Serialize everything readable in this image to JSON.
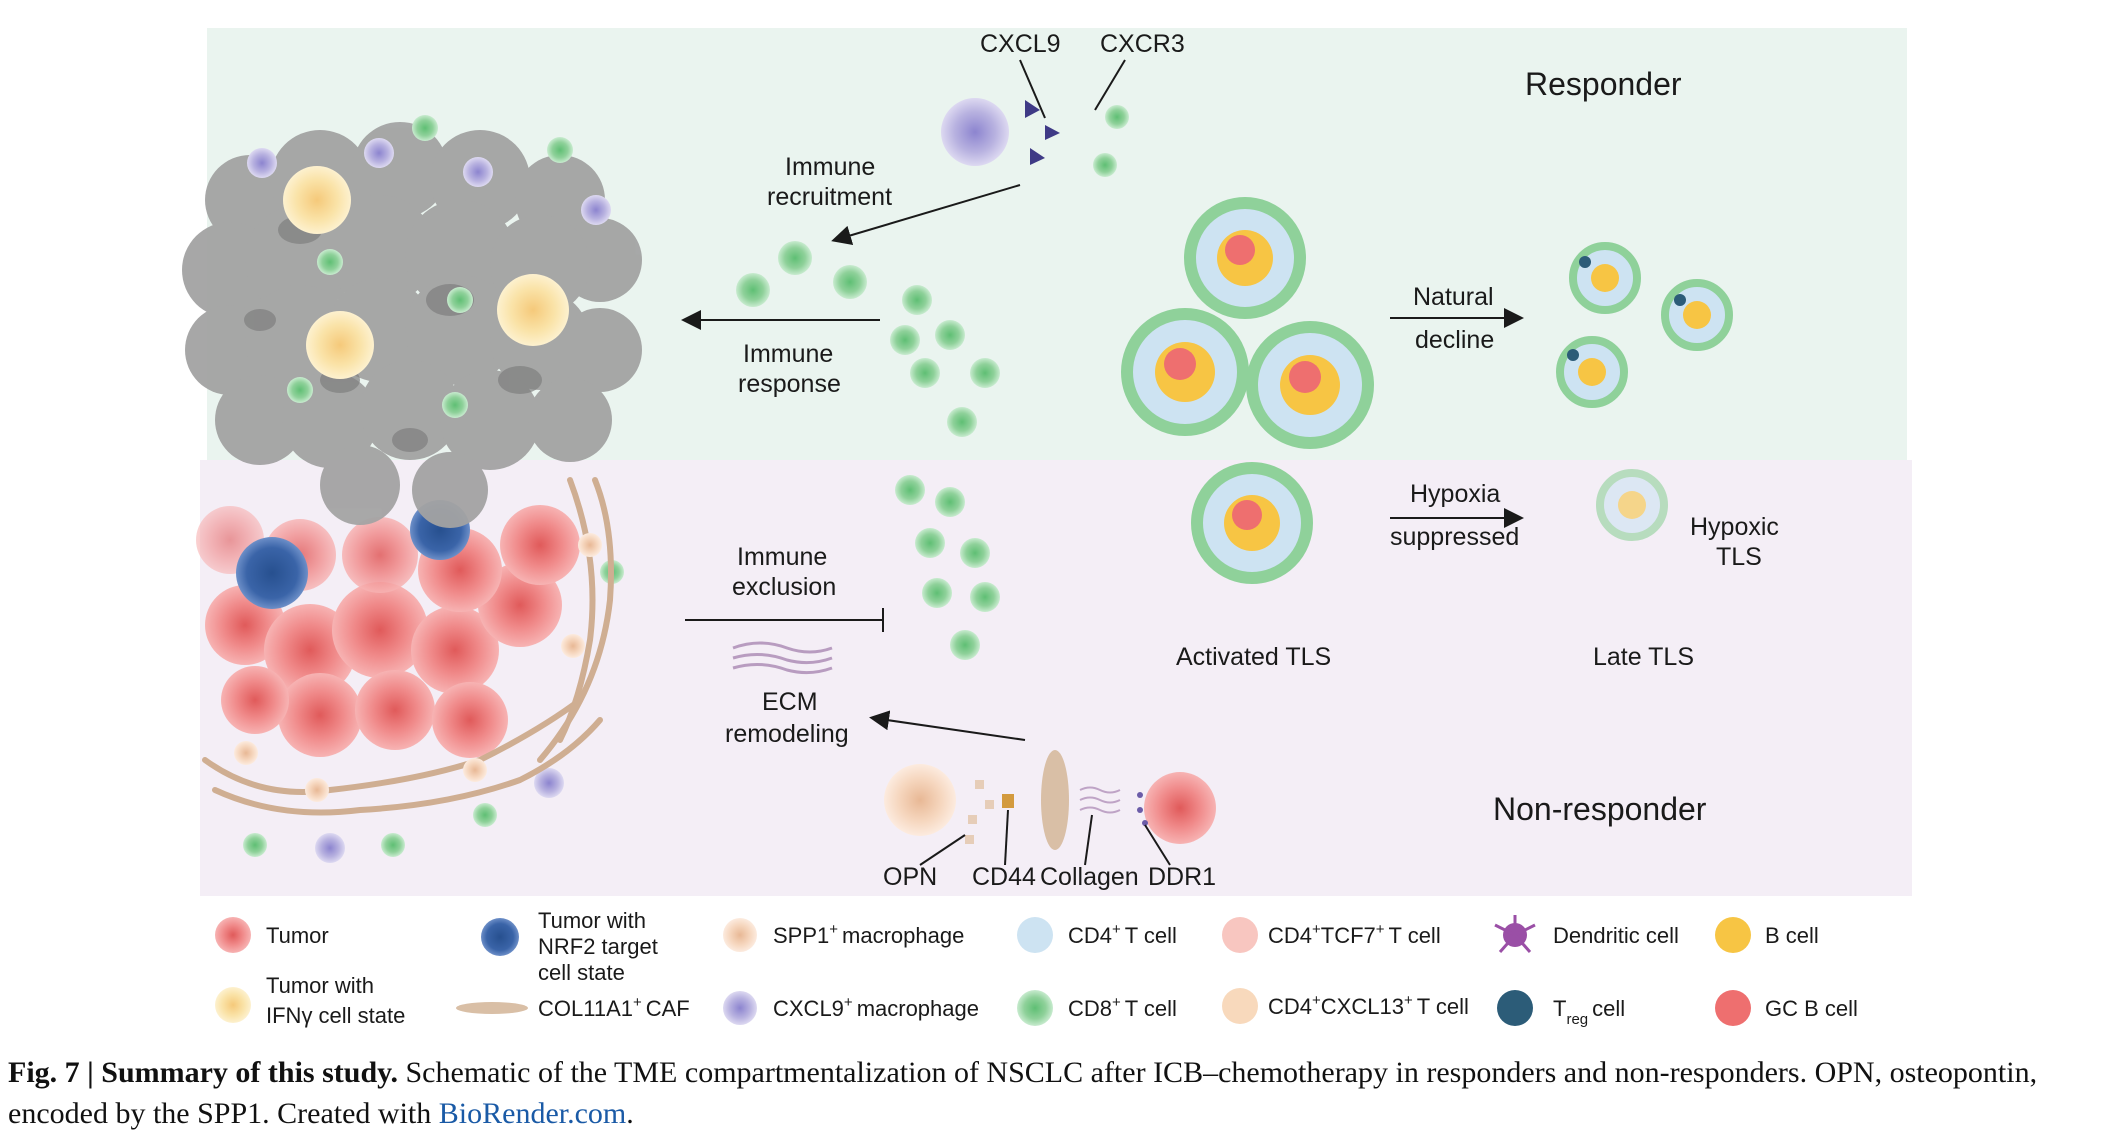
{
  "sections": {
    "responder": "Responder",
    "non_responder": "Non-responder"
  },
  "labels": {
    "cxcl9": "CXCL9",
    "cxcr3": "CXCR3",
    "immune_recruitment": [
      "Immune",
      "recruitment"
    ],
    "immune_response": [
      "Immune",
      "response"
    ],
    "natural_decline": [
      "Natural",
      "decline"
    ],
    "immune_exclusion": [
      "Immune",
      "exclusion"
    ],
    "ecm_remodeling": [
      "ECM",
      "remodeling"
    ],
    "hypoxia_suppressed": [
      "Hypoxia",
      "suppressed"
    ],
    "hypoxic_tls": [
      "Hypoxic",
      "TLS"
    ],
    "activated_tls": "Activated TLS",
    "late_tls": "Late TLS",
    "opn": "OPN",
    "cd44": "CD44",
    "collagen": "Collagen",
    "ddr1": "DDR1"
  },
  "legend": [
    {
      "lines": [
        "Tumor"
      ],
      "icon": "tumor-icon",
      "color": "#f08a8a"
    },
    {
      "lines": [
        "Tumor with",
        "IFNγ cell state"
      ],
      "icon": "ifng-tumor-icon",
      "color": "#f9e6a0"
    },
    {
      "lines": [
        "Tumor with",
        "NRF2 target",
        "cell state"
      ],
      "icon": "nrf2-tumor-icon",
      "color": "#3a64a8"
    },
    {
      "lines": [
        "COL11A1",
        "CAF"
      ],
      "sup": "+",
      "icon": "caf-icon",
      "color": "#d9bfa6"
    },
    {
      "lines": [
        "SPP1",
        "macrophage"
      ],
      "sup": "+",
      "icon": "spp1-macrophage-icon",
      "color": "#f6d7bf"
    },
    {
      "lines": [
        "CXCL9",
        "macrophage"
      ],
      "sup": "+",
      "icon": "cxcl9-macrophage-icon",
      "color": "#b8b2e0"
    },
    {
      "lines": [
        "CD4",
        "T cell"
      ],
      "sup": "+",
      "icon": "cd4-t-cell-icon",
      "color": "#cde3f2"
    },
    {
      "lines": [
        "CD8",
        "T cell"
      ],
      "sup": "+",
      "icon": "cd8-t-cell-icon",
      "color": "#8fd19a"
    },
    {
      "lines": [
        "CD4",
        "TCF7",
        "T cell"
      ],
      "sup": "+",
      "icon": "cd4-tcf7-t-cell-icon",
      "color": "#f8c6c0"
    },
    {
      "lines": [
        "CD4",
        "CXCL13",
        "T cell"
      ],
      "sup": "+",
      "icon": "cd4-cxcl13-t-cell-icon",
      "color": "#f8d9bc"
    },
    {
      "lines": [
        "Dendritic cell"
      ],
      "icon": "dendritic-cell-icon",
      "color": "#9a4fa6"
    },
    {
      "lines": [
        "T",
        "reg",
        "cell"
      ],
      "icon": "treg-icon",
      "color": "#2c5c78"
    },
    {
      "lines": [
        "B cell"
      ],
      "icon": "b-cell-icon",
      "color": "#f7c544"
    },
    {
      "lines": [
        "GC B cell"
      ],
      "icon": "gc-b-cell-icon",
      "color": "#ee6f6f"
    }
  ],
  "caption": {
    "figure": "Fig. 7 | Summary of this study.",
    "text": " Schematic of the TME compartmentalization of NSCLC after ICB–chemotherapy in responders and non-responders. OPN, osteopontin, encoded by the SPP1. Created with ",
    "link": "BioRender.com",
    "end": "."
  },
  "colors": {
    "responder_bg": "#eaf4ef",
    "non_responder_bg": "#f4eef6",
    "tumor": "#f08a8a",
    "necrotic": "#9e9e9e",
    "cd8": "#8fd19a",
    "link": "#1a5aa6"
  }
}
